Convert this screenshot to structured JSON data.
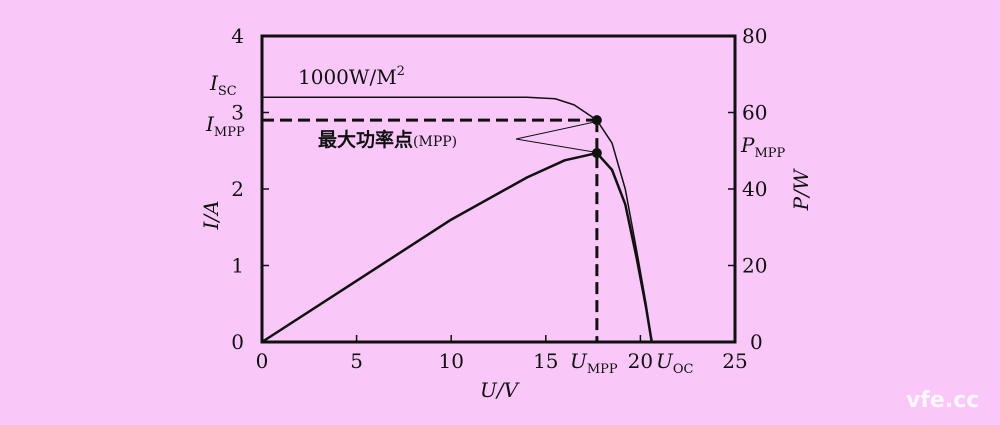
{
  "chart_data": {
    "type": "line",
    "xlabel": "U/V",
    "ylabel": "I/A",
    "y2label": "P/W",
    "xlim": [
      0,
      25
    ],
    "ylim": [
      0,
      4
    ],
    "y2lim": [
      0,
      80
    ],
    "x_ticks": [
      "0",
      "5",
      "10",
      "15",
      "20",
      "25"
    ],
    "y_ticks": [
      "0",
      "1",
      "2",
      "3",
      "4"
    ],
    "y2_ticks": [
      "0",
      "20",
      "40",
      "60",
      "80"
    ],
    "grid": false,
    "series": [
      {
        "axis": "left",
        "points": [
          [
            0,
            3.2
          ],
          [
            14,
            3.2
          ],
          [
            15.5,
            3.18
          ],
          [
            16.5,
            3.1
          ],
          [
            17.7,
            2.9
          ],
          [
            18.5,
            2.6
          ],
          [
            19.2,
            2.0
          ],
          [
            19.8,
            1.2
          ],
          [
            20.3,
            0.5
          ],
          [
            20.6,
            0
          ]
        ]
      },
      {
        "axis": "right",
        "points": [
          [
            0,
            0
          ],
          [
            5,
            16
          ],
          [
            10,
            32
          ],
          [
            14,
            43
          ],
          [
            16,
            47.5
          ],
          [
            17.7,
            49.4
          ],
          [
            18.5,
            45
          ],
          [
            19.2,
            36
          ],
          [
            19.8,
            22
          ],
          [
            20.3,
            9
          ],
          [
            20.6,
            0
          ]
        ]
      }
    ],
    "mpp": {
      "U": 17.7,
      "I": 2.9,
      "P": 49.4
    },
    "annotations": {
      "irradiance": "1000W/M",
      "irradiance_sup": "2",
      "mpp_label": "最大功率点",
      "mpp_label_suffix": "(MPP)",
      "isc": {
        "main": "I",
        "sub": "SC"
      },
      "impp": {
        "main": "I",
        "sub": "MPP"
      },
      "pmpp": {
        "main": "P",
        "sub": "MPP"
      },
      "umpp": {
        "main": "U",
        "sub": "MPP"
      },
      "uoc": {
        "main": "U",
        "sub": "OC"
      }
    },
    "colors": {
      "background": "#f9c8f9",
      "lines": "#111111"
    }
  },
  "watermark": "vfe.cc"
}
